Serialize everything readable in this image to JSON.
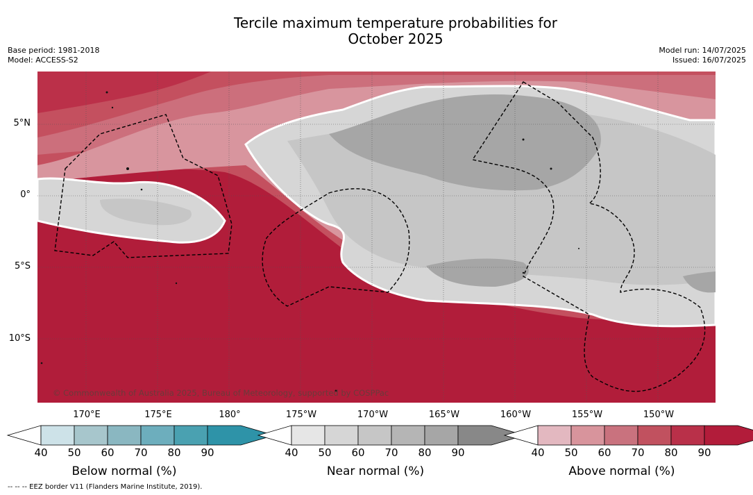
{
  "title_line1": "Tercile maximum temperature probabilities for",
  "title_line2": "October 2025",
  "meta_left": {
    "base_period": "Base period: 1981-2018",
    "model": "Model: ACCESS-S2"
  },
  "meta_right": {
    "model_run": "Model run: 14/07/2025",
    "issued": "Issued: 16/07/2025"
  },
  "lat_labels": [
    "5°N",
    "0°",
    "5°S",
    "10°S"
  ],
  "lon_labels": [
    "170°E",
    "175°E",
    "180°",
    "175°W",
    "170°W",
    "165°W",
    "160°W",
    "155°W",
    "150°W"
  ],
  "copyright": "© Commonwealth of Australia 2025, Bureau of Meteorology, supported by COSPPac",
  "footnote": "--  --  -- EEZ border V11 (Flanders Marine Institute, 2019).",
  "colorbars": [
    {
      "label": "Below normal (%)",
      "ticks": [
        "40",
        "50",
        "60",
        "70",
        "80",
        "90"
      ],
      "colors": [
        "#cde2e8",
        "#a7c6cc",
        "#8ab7c1",
        "#6daebd",
        "#4aa1b1",
        "#2e93a8"
      ]
    },
    {
      "label": "Near normal (%)",
      "ticks": [
        "40",
        "50",
        "60",
        "70",
        "80",
        "90"
      ],
      "colors": [
        "#e6e6e6",
        "#d6d6d6",
        "#c6c6c6",
        "#b5b5b5",
        "#a6a6a6",
        "#888888"
      ]
    },
    {
      "label": "Above normal (%)",
      "ticks": [
        "40",
        "50",
        "60",
        "70",
        "80",
        "90"
      ],
      "colors": [
        "#e3b8c0",
        "#d8949c",
        "#c9727e",
        "#c1515f",
        "#b93049",
        "#b21c3a"
      ]
    }
  ],
  "map_colors": {
    "above_90": "#b11d3a",
    "above_80": "#bb3049",
    "above_70": "#c4505f",
    "above_60": "#cc6f7c",
    "above_50": "#d8959e",
    "near_50": "#d6d6d6",
    "near_60": "#c6c6c6",
    "near_70": "#a6a6a6"
  }
}
